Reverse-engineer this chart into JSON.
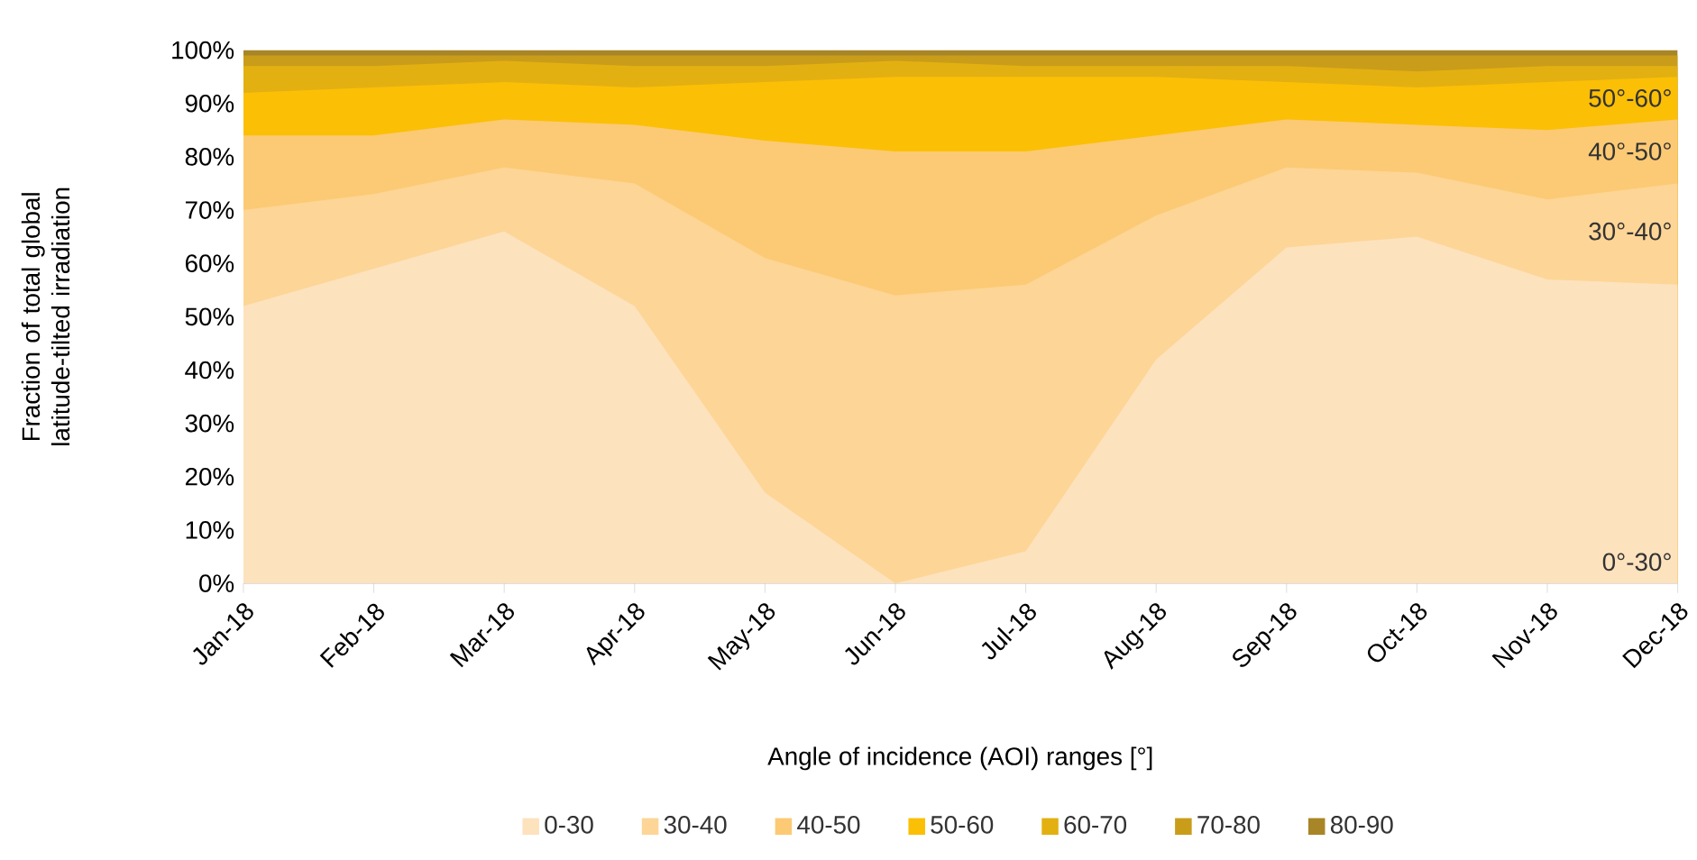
{
  "chart_data": {
    "type": "area",
    "stacked": true,
    "ylabel": "Fraction of total global latitude-tilted irradiation",
    "xlabel": "Angle of incidence (AOI) ranges [°]",
    "categories": [
      "Jan-18",
      "Feb-18",
      "Mar-18",
      "Apr-18",
      "May-18",
      "Jun-18",
      "Jul-18",
      "Aug-18",
      "Sep-18",
      "Oct-18",
      "Nov-18",
      "Dec-18"
    ],
    "series": [
      {
        "name": "0-30",
        "color": "#fde2be",
        "values": [
          52,
          59,
          66,
          52,
          17,
          0,
          6,
          42,
          63,
          65,
          57,
          56
        ]
      },
      {
        "name": "30-40",
        "color": "#fdd596",
        "values": [
          18,
          14,
          12,
          23,
          44,
          54,
          50,
          27,
          15,
          12,
          15,
          19
        ]
      },
      {
        "name": "40-50",
        "color": "#fcca74",
        "values": [
          14,
          11,
          9,
          11,
          22,
          27,
          25,
          15,
          9,
          9,
          13,
          12
        ]
      },
      {
        "name": "50-60",
        "color": "#fbbf06",
        "values": [
          8,
          9,
          7,
          7,
          11,
          14,
          14,
          11,
          7,
          7,
          9,
          8
        ]
      },
      {
        "name": "60-70",
        "color": "#e3b012",
        "values": [
          5,
          4,
          4,
          4,
          3,
          3,
          2,
          2,
          3,
          3,
          3,
          2
        ]
      },
      {
        "name": "70-80",
        "color": "#c99d1a",
        "values": [
          2,
          2,
          1,
          2,
          2,
          1,
          2,
          2,
          2,
          3,
          2,
          2
        ]
      },
      {
        "name": "80-90",
        "color": "#a88526",
        "values": [
          1,
          1,
          1,
          1,
          1,
          1,
          1,
          1,
          1,
          1,
          1,
          1
        ]
      }
    ],
    "ylim": [
      0,
      100
    ],
    "yticks": [
      {
        "value": 0,
        "label": "0%"
      },
      {
        "value": 10,
        "label": "10%"
      },
      {
        "value": 20,
        "label": "20%"
      },
      {
        "value": 30,
        "label": "30%"
      },
      {
        "value": 40,
        "label": "40%"
      },
      {
        "value": 50,
        "label": "50%"
      },
      {
        "value": 60,
        "label": "60%"
      },
      {
        "value": 70,
        "label": "70%"
      },
      {
        "value": 80,
        "label": "80%"
      },
      {
        "value": 90,
        "label": "90%"
      },
      {
        "value": 100,
        "label": "100%"
      }
    ],
    "annotations": [
      {
        "text": "50°-60°",
        "x": "Dec-18",
        "y": 91
      },
      {
        "text": "40°-50°",
        "x": "Dec-18",
        "y": 81
      },
      {
        "text": "30°-40°",
        "x": "Dec-18",
        "y": 66
      },
      {
        "text": "0°-30°",
        "x": "Dec-18",
        "y": 4
      }
    ],
    "legend": "bottom"
  }
}
